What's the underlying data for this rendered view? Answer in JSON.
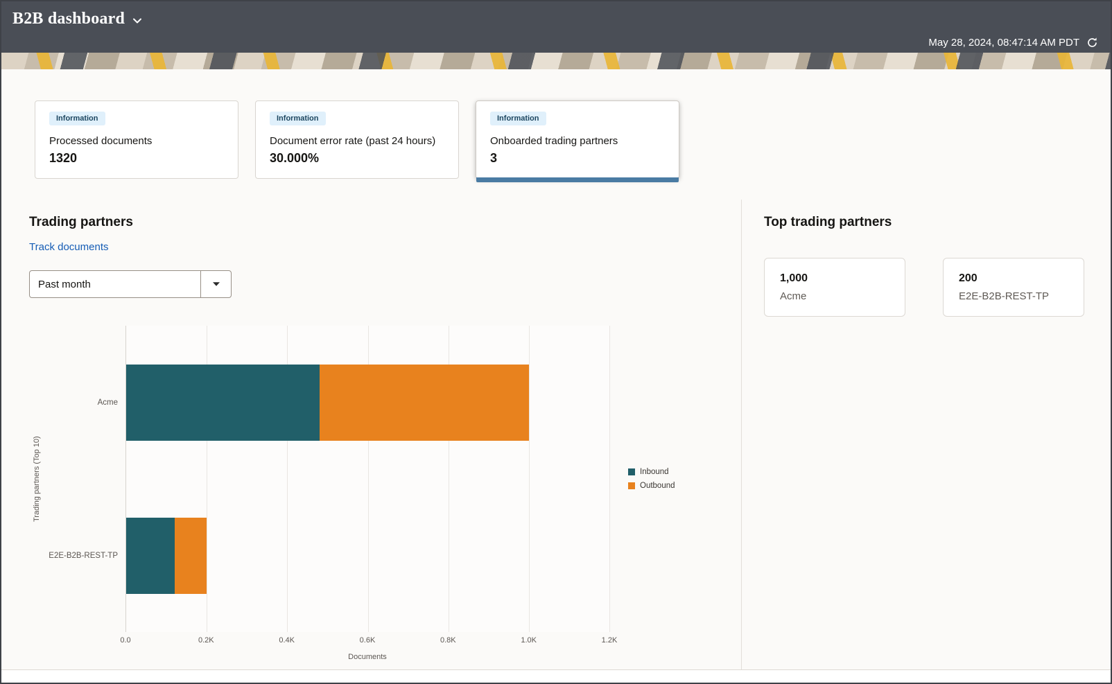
{
  "header": {
    "title": "B2B dashboard",
    "timestamp": "May 28, 2024, 08:47:14 AM PDT"
  },
  "kpi_cards": [
    {
      "badge": "Information",
      "label": "Processed documents",
      "value": "1320"
    },
    {
      "badge": "Information",
      "label": "Document error rate (past 24 hours)",
      "value": "30.000%"
    },
    {
      "badge": "Information",
      "label": "Onboarded trading partners",
      "value": "3"
    }
  ],
  "trading_partners_section": {
    "heading": "Trading partners",
    "track_documents_link": "Track documents",
    "period_filter_value": "Past month"
  },
  "top_trading_partners": {
    "heading": "Top trading partners",
    "cards": [
      {
        "value": "1,000",
        "label": "Acme"
      },
      {
        "value": "200",
        "label": "E2E-B2B-REST-TP"
      }
    ]
  },
  "chart_data": {
    "type": "bar",
    "orientation": "horizontal",
    "stacked": true,
    "categories": [
      "Acme",
      "E2E-B2B-REST-TP"
    ],
    "series": [
      {
        "name": "Inbound",
        "color": "#215f69",
        "values": [
          480,
          120
        ]
      },
      {
        "name": "Outbound",
        "color": "#e8821e",
        "values": [
          520,
          80
        ]
      }
    ],
    "xlabel": "Documents",
    "ylabel": "Trading partners (Top 10)",
    "xlim": [
      0,
      1200
    ],
    "xticks": [
      "0.0",
      "0.2K",
      "0.4K",
      "0.6K",
      "0.8K",
      "1.0K",
      "1.2K"
    ],
    "grid": "vertical",
    "legend_position": "right"
  },
  "colors": {
    "header_bg": "#4a4e56",
    "accent_blue": "#4a7ba3",
    "badge_bg": "#e0f0fb",
    "badge_text": "#1c4660",
    "link": "#155cb5",
    "inbound": "#215f69",
    "outbound": "#e8821e"
  }
}
